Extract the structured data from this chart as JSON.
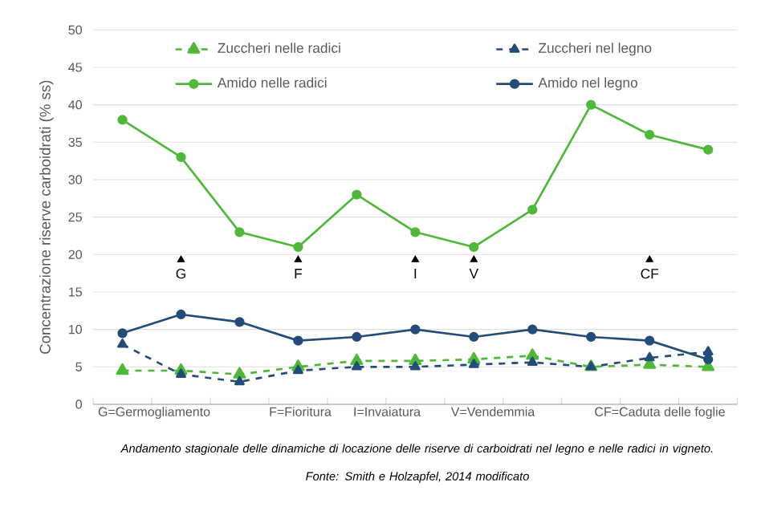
{
  "chart_data": {
    "type": "line",
    "ylabel": "Concentrazione riserve carboidrati (% ss)",
    "categories": [
      null,
      null,
      null,
      null,
      null,
      null,
      null,
      null,
      null,
      null,
      null
    ],
    "series": [
      {
        "name": "Zuccheri nelle radici",
        "color": "#4fb83a",
        "line_style": "dashed",
        "marker": "triangle",
        "values": [
          4.5,
          4.5,
          4,
          5,
          5.8,
          5.8,
          6,
          6.5,
          5,
          5.3,
          5
        ]
      },
      {
        "name": "Zuccheri nel legno",
        "color": "#244c78",
        "line_style": "dashed",
        "marker": "triangle",
        "values": [
          8,
          4,
          3,
          4.5,
          5,
          5,
          5.3,
          5.6,
          5,
          6.2,
          7
        ]
      },
      {
        "name": "Amido nelle radici",
        "color": "#4fb83a",
        "line_style": "solid",
        "marker": "circle",
        "values": [
          38,
          33,
          23,
          21,
          28,
          23,
          21,
          26,
          40,
          36,
          34
        ]
      },
      {
        "name": "Amido nel legno",
        "color": "#244c78",
        "line_style": "solid",
        "marker": "circle",
        "values": [
          9.5,
          12,
          11,
          8.5,
          9,
          10,
          9,
          10,
          9,
          8.5,
          6
        ]
      },
      {
        "type": "scatter",
        "color": "#000000",
        "marker": "triangle",
        "values": [
          null,
          19.3,
          null,
          19.3,
          null,
          19.3,
          19.3,
          null,
          null,
          19.3,
          null
        ],
        "value_labels": [
          null,
          "G",
          null,
          "F",
          null,
          "I",
          "V",
          null,
          null,
          "CF",
          null
        ]
      }
    ],
    "ylim": [
      0,
      50
    ],
    "yticks": [
      0,
      5,
      10,
      15,
      20,
      25,
      30,
      35,
      40,
      45,
      50
    ],
    "grid": "y",
    "legend": "top",
    "annotations": [
      "G=Germogliamento",
      "F=Fioritura",
      "I=Invaiatura",
      "V=Vendemmia",
      "CF=Caduta delle foglie",
      "Andamento stagionale delle dinamiche di locazione delle riserve di carboidrati nel legno e nelle radici in vigneto.",
      "Fonte: Smith e Holzapfel, 2014 modificato"
    ]
  }
}
